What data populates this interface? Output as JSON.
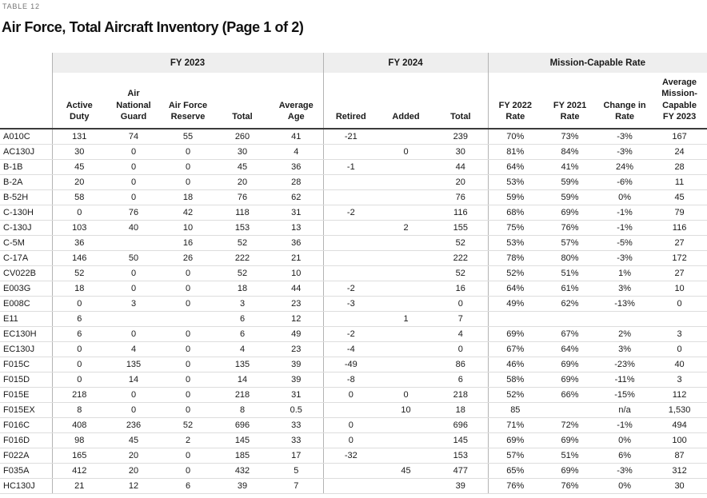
{
  "page": {
    "table_label": "TABLE 12",
    "title": "Air Force, Total Aircraft Inventory (Page 1 of 2)"
  },
  "colors": {
    "band_bg": "#eeeeee",
    "header_rule": "#3b3b3b",
    "row_line": "#dddddd",
    "group_line": "#b3b3b3",
    "text": "#1a1a1a",
    "muted": "#767676"
  },
  "table": {
    "groups": [
      {
        "label": "FY 2023",
        "span": 5
      },
      {
        "label": "FY 2024",
        "span": 3
      },
      {
        "label": "Mission-Capable Rate",
        "span": 4
      }
    ],
    "columns": [
      "Active Duty",
      "Air National Guard",
      "Air Force Reserve",
      "Total",
      "Average Age",
      "Retired",
      "Added",
      "Total",
      "FY 2022 Rate",
      "FY 2021 Rate",
      "Change in Rate",
      "Average Mission-Capable FY 2023"
    ],
    "rows": [
      {
        "aircraft": "A010C",
        "values": [
          "131",
          "74",
          "55",
          "260",
          "41",
          "-21",
          "",
          "239",
          "70%",
          "73%",
          "-3%",
          "167"
        ]
      },
      {
        "aircraft": "AC130J",
        "values": [
          "30",
          "0",
          "0",
          "30",
          "4",
          "",
          "0",
          "30",
          "81%",
          "84%",
          "-3%",
          "24"
        ]
      },
      {
        "aircraft": "B-1B",
        "values": [
          "45",
          "0",
          "0",
          "45",
          "36",
          "-1",
          "",
          "44",
          "64%",
          "41%",
          "24%",
          "28"
        ]
      },
      {
        "aircraft": "B-2A",
        "values": [
          "20",
          "0",
          "0",
          "20",
          "28",
          "",
          "",
          "20",
          "53%",
          "59%",
          "-6%",
          "11"
        ]
      },
      {
        "aircraft": "B-52H",
        "values": [
          "58",
          "0",
          "18",
          "76",
          "62",
          "",
          "",
          "76",
          "59%",
          "59%",
          "0%",
          "45"
        ]
      },
      {
        "aircraft": "C-130H",
        "values": [
          "0",
          "76",
          "42",
          "118",
          "31",
          "-2",
          "",
          "116",
          "68%",
          "69%",
          "-1%",
          "79"
        ]
      },
      {
        "aircraft": "C-130J",
        "values": [
          "103",
          "40",
          "10",
          "153",
          "13",
          "",
          "2",
          "155",
          "75%",
          "76%",
          "-1%",
          "116"
        ]
      },
      {
        "aircraft": "C-5M",
        "values": [
          "36",
          "",
          "16",
          "52",
          "36",
          "",
          "",
          "52",
          "53%",
          "57%",
          "-5%",
          "27"
        ]
      },
      {
        "aircraft": "C-17A",
        "values": [
          "146",
          "50",
          "26",
          "222",
          "21",
          "",
          "",
          "222",
          "78%",
          "80%",
          "-3%",
          "172"
        ]
      },
      {
        "aircraft": "CV022B",
        "values": [
          "52",
          "0",
          "0",
          "52",
          "10",
          "",
          "",
          "52",
          "52%",
          "51%",
          "1%",
          "27"
        ]
      },
      {
        "aircraft": "E003G",
        "values": [
          "18",
          "0",
          "0",
          "18",
          "44",
          "-2",
          "",
          "16",
          "64%",
          "61%",
          "3%",
          "10"
        ]
      },
      {
        "aircraft": "E008C",
        "values": [
          "0",
          "3",
          "0",
          "3",
          "23",
          "-3",
          "",
          "0",
          "49%",
          "62%",
          "-13%",
          "0"
        ]
      },
      {
        "aircraft": "E11",
        "values": [
          "6",
          "",
          "",
          "6",
          "12",
          "",
          "1",
          "7",
          "",
          "",
          "",
          ""
        ]
      },
      {
        "aircraft": "EC130H",
        "values": [
          "6",
          "0",
          "0",
          "6",
          "49",
          "-2",
          "",
          "4",
          "69%",
          "67%",
          "2%",
          "3"
        ]
      },
      {
        "aircraft": "EC130J",
        "values": [
          "0",
          "4",
          "0",
          "4",
          "23",
          "-4",
          "",
          "0",
          "67%",
          "64%",
          "3%",
          "0"
        ]
      },
      {
        "aircraft": "F015C",
        "values": [
          "0",
          "135",
          "0",
          "135",
          "39",
          "-49",
          "",
          "86",
          "46%",
          "69%",
          "-23%",
          "40"
        ]
      },
      {
        "aircraft": "F015D",
        "values": [
          "0",
          "14",
          "0",
          "14",
          "39",
          "-8",
          "",
          "6",
          "58%",
          "69%",
          "-11%",
          "3"
        ]
      },
      {
        "aircraft": "F015E",
        "values": [
          "218",
          "0",
          "0",
          "218",
          "31",
          "0",
          "0",
          "218",
          "52%",
          "66%",
          "-15%",
          "112"
        ]
      },
      {
        "aircraft": "F015EX",
        "values": [
          "8",
          "0",
          "0",
          "8",
          "0.5",
          "",
          "10",
          "18",
          "85",
          "",
          "n/a",
          "1,530"
        ]
      },
      {
        "aircraft": "F016C",
        "values": [
          "408",
          "236",
          "52",
          "696",
          "33",
          "0",
          "",
          "696",
          "71%",
          "72%",
          "-1%",
          "494"
        ]
      },
      {
        "aircraft": "F016D",
        "values": [
          "98",
          "45",
          "2",
          "145",
          "33",
          "0",
          "",
          "145",
          "69%",
          "69%",
          "0%",
          "100"
        ]
      },
      {
        "aircraft": "F022A",
        "values": [
          "165",
          "20",
          "0",
          "185",
          "17",
          "-32",
          "",
          "153",
          "57%",
          "51%",
          "6%",
          "87"
        ]
      },
      {
        "aircraft": "F035A",
        "values": [
          "412",
          "20",
          "0",
          "432",
          "5",
          "",
          "45",
          "477",
          "65%",
          "69%",
          "-3%",
          "312"
        ]
      },
      {
        "aircraft": "HC130J",
        "values": [
          "21",
          "12",
          "6",
          "39",
          "7",
          "",
          "",
          "39",
          "76%",
          "76%",
          "0%",
          "30"
        ]
      }
    ]
  }
}
